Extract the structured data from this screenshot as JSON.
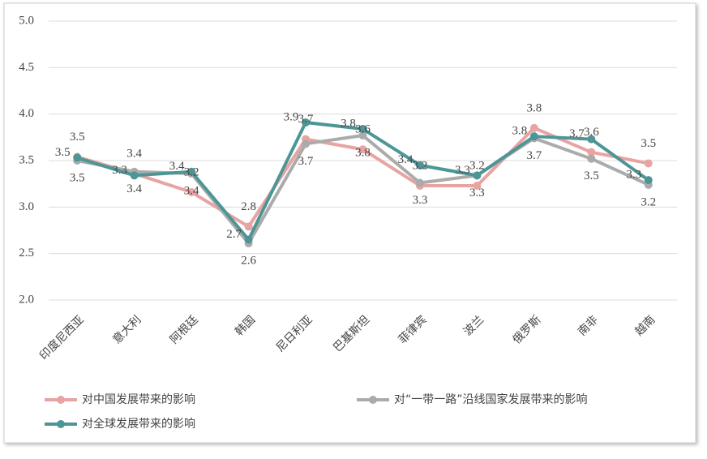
{
  "chart_data": {
    "type": "line",
    "categories": [
      "印度尼西亚",
      "意大利",
      "阿根廷",
      "韩国",
      "尼日利亚",
      "巴基斯坦",
      "菲律宾",
      "波兰",
      "俄罗斯",
      "南非",
      "越南"
    ],
    "series": [
      {
        "name": "对中国发展带来的影响",
        "color": "#e8a3a3",
        "values": [
          3.54,
          3.36,
          3.16,
          2.79,
          3.73,
          3.62,
          3.23,
          3.23,
          3.85,
          3.59,
          3.47
        ],
        "value_labels": [
          "3.5",
          "3.4",
          "3.2",
          "2.8",
          "3.7",
          "3.6",
          "3.2",
          "3.2",
          "3.8",
          "3.6",
          "3.5"
        ]
      },
      {
        "name": "对“一带一路”沿线国家发展带来的影响",
        "color": "#ababab",
        "values": [
          3.5,
          3.38,
          3.36,
          2.61,
          3.68,
          3.77,
          3.26,
          3.34,
          3.74,
          3.52,
          3.24
        ],
        "value_labels": [
          "3.5",
          "3.4",
          "3.4",
          "2.6",
          "3.7",
          "3.8",
          "3.3",
          "3.3",
          "3.7",
          "3.5",
          "3.2"
        ]
      },
      {
        "name": "对全球发展带来的影响",
        "color": "#4e9696",
        "values": [
          3.53,
          3.34,
          3.38,
          2.65,
          3.91,
          3.84,
          3.45,
          3.34,
          3.76,
          3.73,
          3.29
        ],
        "value_labels": [
          "3.5",
          "3.3",
          "3.4",
          "2.7",
          "3.9",
          "3.8",
          "3.4",
          "3.3",
          "3.8",
          "3.7",
          "3.3"
        ]
      }
    ],
    "ylim": [
      2.0,
      5.0
    ],
    "yticks": [
      {
        "value": 2.0,
        "label": "2.0"
      },
      {
        "value": 2.5,
        "label": "2.5"
      },
      {
        "value": 3.0,
        "label": "3.0"
      },
      {
        "value": 3.5,
        "label": "3.5"
      },
      {
        "value": 4.0,
        "label": "4.0"
      },
      {
        "value": 4.5,
        "label": "4.5"
      },
      {
        "value": 5.0,
        "label": "5.0"
      }
    ],
    "grid": true
  }
}
